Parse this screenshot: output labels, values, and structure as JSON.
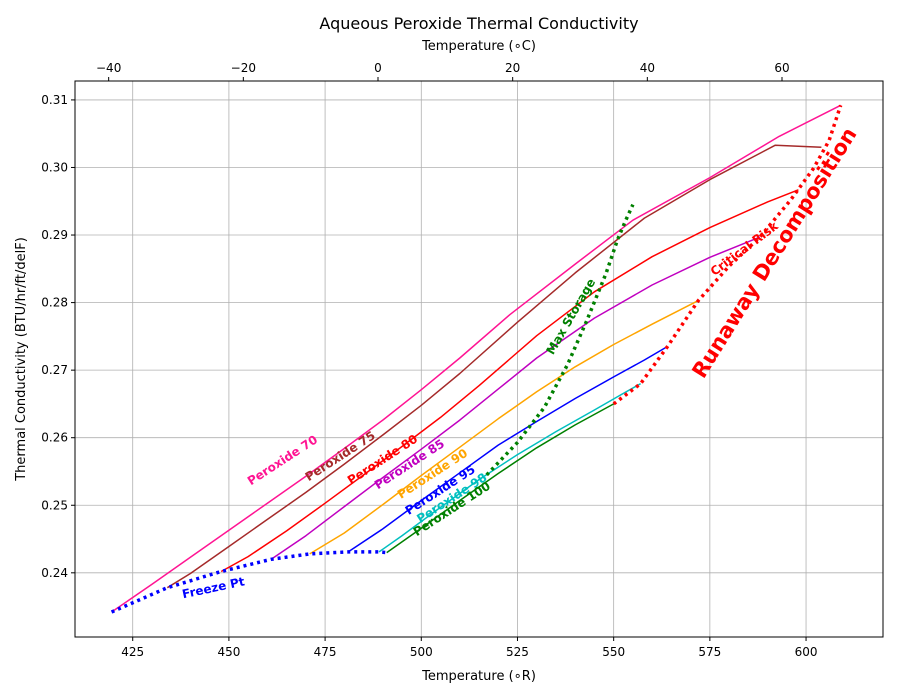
{
  "chart_data": {
    "type": "line",
    "title": "Aqueous Peroxide Thermal Conductivity",
    "xlabel": "Temperature (∘R)",
    "x2label": "Temperature (∘C)",
    "ylabel": "Thermal Conductivity (BTU/hr/ft/delF)",
    "xlim": [
      410,
      620
    ],
    "ylim": [
      0.2305,
      0.3128
    ],
    "x2lim": [
      -45,
      75
    ],
    "xticks": [
      425,
      450,
      475,
      500,
      525,
      550,
      575,
      600
    ],
    "x2ticks": [
      -40,
      -20,
      0,
      20,
      40,
      60
    ],
    "yticks": [
      0.24,
      0.25,
      0.26,
      0.27,
      0.28,
      0.29,
      0.3,
      0.31
    ],
    "grid": true,
    "series": [
      {
        "name": "Peroxide 70",
        "color": "#ff1493",
        "x": [
          419.5,
          430,
          440,
          450,
          460,
          470,
          480,
          490,
          500,
          510,
          523,
          540,
          555,
          575,
          593,
          609
        ],
        "y": [
          0.2342,
          0.2383,
          0.2423,
          0.2463,
          0.2503,
          0.2543,
          0.2584,
          0.2626,
          0.2671,
          0.2718,
          0.2782,
          0.2857,
          0.2922,
          0.2985,
          0.3046,
          0.3092
        ]
      },
      {
        "name": "Peroxide 75",
        "color": "#a52a2a",
        "x": [
          434,
          440,
          450,
          460,
          470,
          480,
          490,
          500,
          510,
          525,
          540,
          558,
          575,
          592,
          604
        ],
        "y": [
          0.2378,
          0.2399,
          0.2439,
          0.2479,
          0.2519,
          0.2561,
          0.2604,
          0.2648,
          0.2695,
          0.2771,
          0.2844,
          0.2925,
          0.2982,
          0.3033,
          0.303
        ]
      },
      {
        "name": "Peroxide 80",
        "color": "#ff0000",
        "x": [
          448,
          455,
          465,
          475,
          485,
          495,
          505,
          515,
          530,
          545,
          560,
          575,
          590,
          598
        ],
        "y": [
          0.2402,
          0.2424,
          0.2462,
          0.2503,
          0.2545,
          0.2587,
          0.263,
          0.2677,
          0.2751,
          0.2816,
          0.2868,
          0.2911,
          0.2949,
          0.2967
        ]
      },
      {
        "name": "Peroxide 85",
        "color": "#c000c0",
        "x": [
          461,
          470,
          480,
          490,
          500,
          510,
          520,
          530,
          545,
          560,
          575,
          588
        ],
        "y": [
          0.242,
          0.2455,
          0.2498,
          0.2541,
          0.2583,
          0.2626,
          0.2672,
          0.2718,
          0.2777,
          0.2826,
          0.2867,
          0.2897
        ]
      },
      {
        "name": "Peroxide 90",
        "color": "#ffa500",
        "x": [
          471,
          480,
          490,
          500,
          510,
          520,
          530,
          540,
          550,
          560,
          572
        ],
        "y": [
          0.2428,
          0.2459,
          0.2501,
          0.2544,
          0.2586,
          0.2628,
          0.2668,
          0.2705,
          0.2738,
          0.2768,
          0.2803
        ]
      },
      {
        "name": "Peroxide 95",
        "color": "#0000ff",
        "x": [
          481,
          490,
          500,
          510,
          520,
          530,
          540,
          550,
          558,
          564
        ],
        "y": [
          0.2431,
          0.2465,
          0.2507,
          0.2548,
          0.2589,
          0.2624,
          0.2658,
          0.269,
          0.2715,
          0.2735
        ]
      },
      {
        "name": "Peroxide 98",
        "color": "#00bfbf",
        "x": [
          489,
          495,
          505,
          515,
          525,
          535,
          545,
          552,
          557
        ],
        "y": [
          0.2431,
          0.2455,
          0.2497,
          0.2538,
          0.2575,
          0.2609,
          0.2641,
          0.2664,
          0.268
        ]
      },
      {
        "name": "Peroxide 100",
        "color": "#008000",
        "x": [
          491,
          500,
          510,
          520,
          530,
          540,
          550
        ],
        "y": [
          0.243,
          0.2466,
          0.2507,
          0.2547,
          0.2585,
          0.2619,
          0.265
        ]
      }
    ],
    "boundaries": [
      {
        "name": "Freeze Pt",
        "color": "#0000ff",
        "x": [
          419.5,
          434,
          448,
          461,
          471,
          481,
          489,
          491
        ],
        "y": [
          0.2342,
          0.2378,
          0.2402,
          0.242,
          0.2428,
          0.2431,
          0.2431,
          0.243
        ]
      },
      {
        "name": "Max Storage",
        "color": "#008000",
        "x": [
          517,
          525,
          532,
          538,
          543,
          548,
          551,
          553,
          555
        ],
        "y": [
          0.2545,
          0.2593,
          0.2645,
          0.2708,
          0.2773,
          0.2843,
          0.2893,
          0.292,
          0.2945
        ]
      },
      {
        "name": "Critical Risk",
        "color": "#ff0000",
        "x": [
          550,
          557,
          564,
          572,
          580,
          588,
          596,
          602,
          606,
          609
        ],
        "y": [
          0.265,
          0.268,
          0.2735,
          0.2803,
          0.2854,
          0.2897,
          0.2952,
          0.2999,
          0.304,
          0.3092
        ]
      }
    ],
    "annotations": [
      {
        "text": "Peroxide 70",
        "x": 464,
        "y": 0.2566,
        "angle": -33,
        "color": "#ff1493",
        "style": "series"
      },
      {
        "text": "Peroxide 75",
        "x": 479,
        "y": 0.2572,
        "angle": -33,
        "color": "#a52a2a",
        "style": "series"
      },
      {
        "text": "Peroxide 80",
        "x": 490,
        "y": 0.2567,
        "angle": -33,
        "color": "#ff0000",
        "style": "series"
      },
      {
        "text": "Peroxide 85",
        "x": 497,
        "y": 0.256,
        "angle": -33,
        "color": "#c000c0",
        "style": "series"
      },
      {
        "text": "Peroxide 90",
        "x": 503,
        "y": 0.2546,
        "angle": -33,
        "color": "#ffa500",
        "style": "series"
      },
      {
        "text": "Peroxide 95",
        "x": 505,
        "y": 0.2522,
        "angle": -33,
        "color": "#0000ff",
        "style": "series"
      },
      {
        "text": "Peroxide 98",
        "x": 508,
        "y": 0.251,
        "angle": -33,
        "color": "#00bfbf",
        "style": "series"
      },
      {
        "text": "Peroxide 100",
        "x": 508,
        "y": 0.2494,
        "angle": -33,
        "color": "#008000",
        "style": "series"
      },
      {
        "text": "Freeze Pt",
        "x": 446,
        "y": 0.2377,
        "angle": -12,
        "color": "#0000ff",
        "style": "small"
      },
      {
        "text": "Max Storage",
        "x": 539,
        "y": 0.2779,
        "angle": -60,
        "color": "#008000",
        "style": "small"
      },
      {
        "text": "Critical Risk",
        "x": 584,
        "y": 0.2879,
        "angle": -37,
        "color": "#ff0000",
        "style": "small"
      },
      {
        "text": "Runaway Decomposition",
        "x": 592,
        "y": 0.2873,
        "angle": -58,
        "color": "#ff0000",
        "style": "big"
      }
    ]
  }
}
